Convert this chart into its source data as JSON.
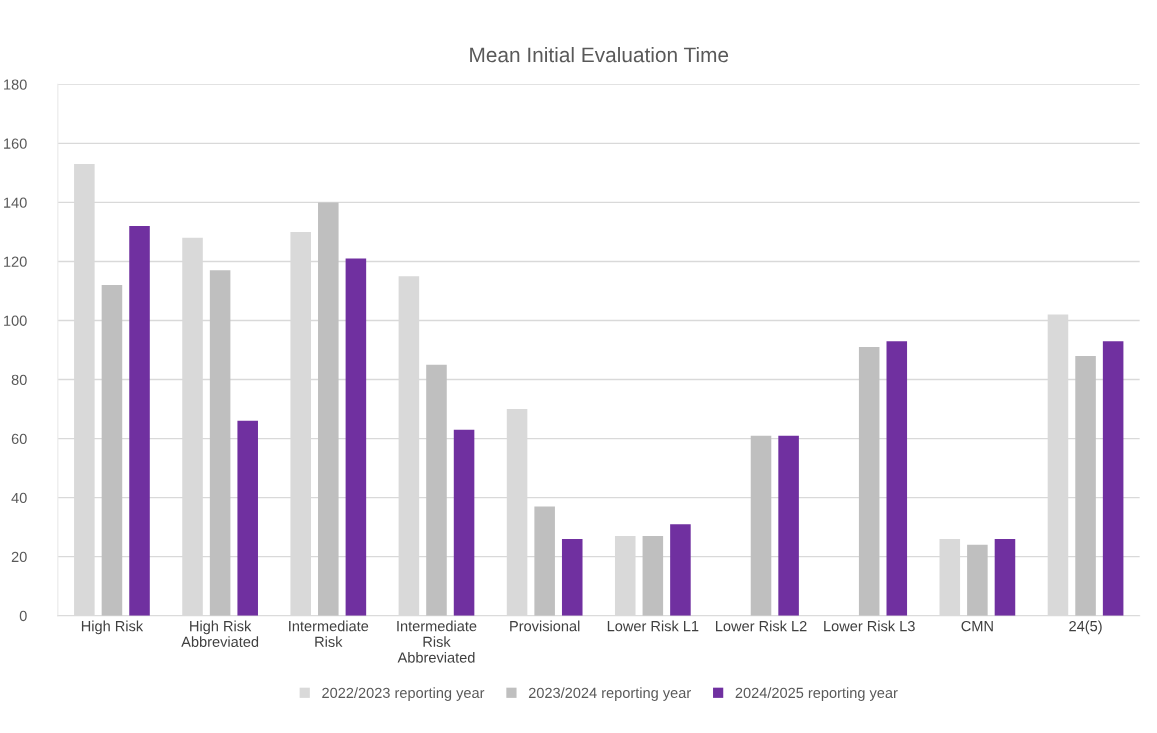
{
  "chart_data": {
    "type": "bar",
    "title": "Mean Initial Evaluation Time",
    "categories": [
      "High Risk",
      "High Risk\nAbbreviated",
      "Intermediate\nRisk",
      "Intermediate\nRisk\nAbbreviated",
      "Provisional",
      "Lower Risk L1",
      "Lower Risk L2",
      "Lower Risk L3",
      "CMN",
      "24(5)"
    ],
    "series": [
      {
        "name": "2022/2023 reporting year",
        "color": "#d9d9d9",
        "values": [
          153,
          128,
          130,
          115,
          70,
          27,
          null,
          null,
          26,
          102
        ]
      },
      {
        "name": "2023/2024 reporting year",
        "color": "#bfbfbf",
        "values": [
          112,
          117,
          140,
          85,
          37,
          27,
          61,
          91,
          24,
          88
        ]
      },
      {
        "name": "2024/2025 reporting year",
        "color": "#7030a0",
        "values": [
          132,
          66,
          121,
          63,
          26,
          31,
          61,
          93,
          26,
          93
        ]
      }
    ],
    "ylim": [
      0,
      180
    ],
    "yticks": [
      0,
      20,
      40,
      60,
      80,
      100,
      120,
      140,
      160,
      180
    ],
    "grid": "y",
    "legend": "bottom"
  }
}
